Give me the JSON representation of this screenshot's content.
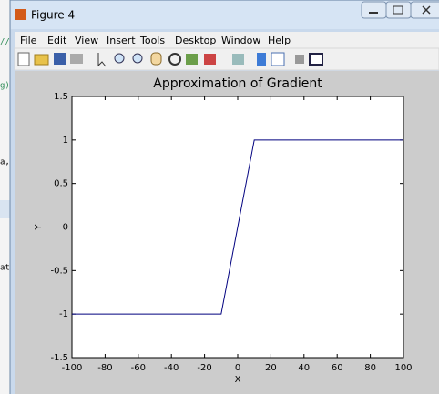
{
  "window": {
    "title": "Figure 4",
    "menu": [
      "File",
      "Edit",
      "View",
      "Insert",
      "Tools",
      "Desktop",
      "Window",
      "Help"
    ]
  },
  "background_text": [
    "//",
    "g))",
    "a,",
    "at"
  ],
  "chart_data": {
    "type": "line",
    "title": "Approximation of Gradient",
    "x_label": "X",
    "y_label": "Y",
    "x": [
      -100,
      -10,
      10,
      100
    ],
    "series": [
      {
        "color": "#00007f",
        "values": [
          -1,
          -1,
          1,
          1
        ]
      }
    ],
    "xlim": [
      -100,
      100
    ],
    "xticks": [
      -100,
      -80,
      -60,
      -40,
      -20,
      0,
      20,
      40,
      60,
      80,
      100
    ],
    "ylim": [
      -1.5,
      1.5
    ],
    "yticks": [
      -1.5,
      -1,
      -0.5,
      0,
      0.5,
      1,
      1.5
    ]
  }
}
